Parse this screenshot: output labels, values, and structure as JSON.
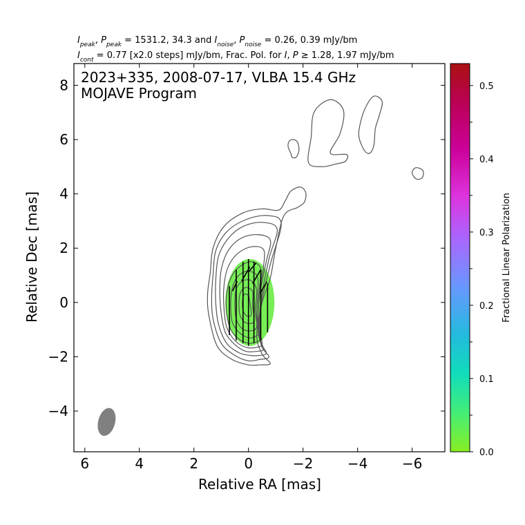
{
  "header": {
    "line1": [
      {
        "t": "I",
        "it": true
      },
      {
        "t": "peak",
        "sub": true,
        "it": true
      },
      {
        "t": ", "
      },
      {
        "t": "P",
        "it": true
      },
      {
        "t": "peak",
        "sub": true,
        "it": true
      },
      {
        "t": " = 1531.2, 34.3 and "
      },
      {
        "t": "I",
        "it": true
      },
      {
        "t": "noise",
        "sub": true,
        "it": true
      },
      {
        "t": ", "
      },
      {
        "t": "P",
        "it": true
      },
      {
        "t": "noise",
        "sub": true,
        "it": true
      },
      {
        "t": " = 0.26, 0.39 mJy/bm"
      }
    ],
    "line2": [
      {
        "t": "I",
        "it": true
      },
      {
        "t": "cont",
        "sub": true,
        "it": true
      },
      {
        "t": " = 0.77 [x2.0 steps] mJy/bm, Frac. Pol. for "
      },
      {
        "t": "I",
        "it": true
      },
      {
        "t": ", "
      },
      {
        "t": "P",
        "it": true
      },
      {
        "t": " ≥ 1.28, 1.97 mJy/bm"
      }
    ]
  },
  "chart_data": {
    "type": "contour",
    "title_line1": "2023+335, 2008-07-17, VLBA 15.4 GHz",
    "title_line2": "MOJAVE Program",
    "xlabel": "Relative RA [mas]",
    "ylabel": "Relative Dec [mas]",
    "xlim": [
      6.4,
      -7.2
    ],
    "ylim": [
      -5.5,
      8.8
    ],
    "xticks": [
      6,
      4,
      2,
      0,
      -2,
      -4,
      -6
    ],
    "yticks": [
      -4,
      -2,
      0,
      2,
      4,
      6,
      8
    ],
    "xticklabels": [
      "6",
      "4",
      "2",
      "0",
      "−2",
      "−4",
      "−6"
    ],
    "yticklabels": [
      "−4",
      "−2",
      "0",
      "2",
      "4",
      "6",
      "8"
    ],
    "colorbar": {
      "label": "Fractional Linear Polarization",
      "min": 0.0,
      "max": 0.53,
      "ticks": [
        0.0,
        0.1,
        0.2,
        0.3,
        0.4,
        0.5
      ],
      "ticklabels": [
        "0.0",
        "0.1",
        "0.2",
        "0.3",
        "0.4",
        "0.5"
      ],
      "minor_ticks": [
        0.05,
        0.15,
        0.25,
        0.35,
        0.45
      ]
    },
    "contour_color": "#555555",
    "polarization_color": "#77ee55",
    "beam": {
      "ra": 5.2,
      "dec": -4.4,
      "major": 1.05,
      "minor": 0.62,
      "pa_deg": 15,
      "color": "#808080"
    },
    "contours": [
      [
        [
          -0.8,
          -2.25
        ],
        [
          -0.5,
          -1.9
        ],
        [
          -0.3,
          -1.2
        ],
        [
          -0.5,
          0
        ],
        [
          -0.8,
          0.9
        ],
        [
          -1.0,
          2.0
        ],
        [
          -1.3,
          3.2
        ],
        [
          -1.8,
          3.5
        ],
        [
          -2.05,
          3.7
        ],
        [
          -2.1,
          4.05
        ],
        [
          -1.9,
          4.25
        ],
        [
          -1.55,
          4.1
        ],
        [
          -1.35,
          3.75
        ],
        [
          -1.1,
          3.4
        ],
        [
          -0.5,
          3.45
        ],
        [
          0.2,
          3.3
        ],
        [
          0.9,
          2.8
        ],
        [
          1.3,
          2.0
        ],
        [
          1.4,
          1.1
        ],
        [
          1.5,
          0.3
        ],
        [
          1.45,
          -0.5
        ],
        [
          1.15,
          -1.6
        ],
        [
          0.6,
          -2.1
        ],
        [
          0.0,
          -2.3
        ],
        [
          -0.4,
          -2.3
        ]
      ],
      [
        [
          -0.75,
          -2.0
        ],
        [
          -0.45,
          -1.5
        ],
        [
          -0.45,
          -0.2
        ],
        [
          -0.8,
          1.4
        ],
        [
          -1.2,
          2.9
        ],
        [
          -0.7,
          3.2
        ],
        [
          0.1,
          3.05
        ],
        [
          0.8,
          2.6
        ],
        [
          1.2,
          1.9
        ],
        [
          1.3,
          1.0
        ],
        [
          1.35,
          0.2
        ],
        [
          1.3,
          -0.6
        ],
        [
          1.0,
          -1.5
        ],
        [
          0.5,
          -1.95
        ],
        [
          0.0,
          -2.15
        ],
        [
          -0.4,
          -2.1
        ]
      ],
      [
        [
          -0.65,
          -1.85
        ],
        [
          -0.4,
          -1.3
        ],
        [
          -0.45,
          0
        ],
        [
          -0.75,
          1.6
        ],
        [
          -1.05,
          2.7
        ],
        [
          -0.5,
          2.95
        ],
        [
          0.2,
          2.8
        ],
        [
          0.75,
          2.35
        ],
        [
          1.1,
          1.7
        ],
        [
          1.2,
          0.8
        ],
        [
          1.2,
          0
        ],
        [
          1.1,
          -0.8
        ],
        [
          0.8,
          -1.5
        ],
        [
          0.35,
          -1.85
        ],
        [
          -0.05,
          -1.95
        ],
        [
          -0.4,
          -1.95
        ]
      ],
      [
        [
          -0.55,
          -1.7
        ],
        [
          -0.35,
          -1.1
        ],
        [
          -0.4,
          0.2
        ],
        [
          -0.65,
          1.5
        ],
        [
          -0.8,
          2.3
        ],
        [
          -0.3,
          2.5
        ],
        [
          0.3,
          2.35
        ],
        [
          0.75,
          1.9
        ],
        [
          1.0,
          1.2
        ],
        [
          1.05,
          0.4
        ],
        [
          1.0,
          -0.4
        ],
        [
          0.85,
          -1.1
        ],
        [
          0.5,
          -1.55
        ],
        [
          0.1,
          -1.8
        ],
        [
          -0.3,
          -1.8
        ]
      ],
      [
        [
          -0.5,
          -1.5
        ],
        [
          -0.35,
          -0.8
        ],
        [
          -0.4,
          0.4
        ],
        [
          -0.55,
          1.3
        ],
        [
          -0.55,
          1.95
        ],
        [
          -0.1,
          2.05
        ],
        [
          0.4,
          1.8
        ],
        [
          0.75,
          1.3
        ],
        [
          0.9,
          0.6
        ],
        [
          0.9,
          -0.2
        ],
        [
          0.8,
          -0.9
        ],
        [
          0.5,
          -1.4
        ],
        [
          0.1,
          -1.65
        ],
        [
          -0.3,
          -1.65
        ]
      ],
      [
        [
          -0.45,
          -1.3
        ],
        [
          -0.35,
          -0.6
        ],
        [
          -0.4,
          0.5
        ],
        [
          -0.45,
          1.25
        ],
        [
          -0.1,
          1.5
        ],
        [
          0.35,
          1.3
        ],
        [
          0.65,
          0.9
        ],
        [
          0.8,
          0.3
        ],
        [
          0.8,
          -0.4
        ],
        [
          0.65,
          -1.0
        ],
        [
          0.35,
          -1.35
        ],
        [
          0.0,
          -1.5
        ],
        [
          -0.3,
          -1.45
        ]
      ],
      [
        [
          -0.4,
          -1.1
        ],
        [
          -0.3,
          -0.5
        ],
        [
          -0.35,
          0.5
        ],
        [
          -0.3,
          1.0
        ],
        [
          0.05,
          1.15
        ],
        [
          0.4,
          0.95
        ],
        [
          0.6,
          0.5
        ],
        [
          0.65,
          -0.1
        ],
        [
          0.6,
          -0.7
        ],
        [
          0.35,
          -1.1
        ],
        [
          0.0,
          -1.3
        ],
        [
          -0.25,
          -1.25
        ]
      ],
      [
        [
          -0.3,
          -0.9
        ],
        [
          -0.25,
          -0.3
        ],
        [
          -0.3,
          0.45
        ],
        [
          -0.1,
          0.8
        ],
        [
          0.2,
          0.8
        ],
        [
          0.45,
          0.5
        ],
        [
          0.5,
          -0.05
        ],
        [
          0.45,
          -0.6
        ],
        [
          0.25,
          -0.95
        ],
        [
          -0.05,
          -1.05
        ]
      ],
      [
        [
          -0.2,
          -0.7
        ],
        [
          -0.15,
          -0.1
        ],
        [
          -0.15,
          0.4
        ],
        [
          0.1,
          0.55
        ],
        [
          0.3,
          0.35
        ],
        [
          0.35,
          -0.1
        ],
        [
          0.3,
          -0.5
        ],
        [
          0.1,
          -0.75
        ]
      ],
      [
        [
          -0.1,
          -0.45
        ],
        [
          -0.05,
          0.0
        ],
        [
          0.0,
          0.25
        ],
        [
          0.15,
          0.3
        ],
        [
          0.22,
          0.05
        ],
        [
          0.2,
          -0.3
        ],
        [
          0.05,
          -0.5
        ]
      ],
      [
        [
          -3.6,
          5.45
        ],
        [
          -3.0,
          5.5
        ],
        [
          -3.35,
          6.2
        ],
        [
          -3.5,
          6.95
        ],
        [
          -3.3,
          7.35
        ],
        [
          -2.9,
          7.45
        ],
        [
          -2.4,
          7.0
        ],
        [
          -2.3,
          6.1
        ],
        [
          -2.2,
          5.15
        ],
        [
          -2.7,
          5.0
        ],
        [
          -3.2,
          5.1
        ],
        [
          -3.55,
          5.2
        ]
      ],
      [
        [
          -4.25,
          5.6
        ],
        [
          -4.05,
          6.1
        ],
        [
          -4.1,
          6.6
        ],
        [
          -4.3,
          7.2
        ],
        [
          -4.6,
          7.6
        ],
        [
          -4.9,
          7.4
        ],
        [
          -4.8,
          6.9
        ],
        [
          -4.65,
          6.4
        ],
        [
          -4.6,
          5.8
        ],
        [
          -4.45,
          5.5
        ]
      ],
      [
        [
          -1.55,
          5.5
        ],
        [
          -1.45,
          5.75
        ],
        [
          -1.5,
          5.95
        ],
        [
          -1.65,
          6.0
        ],
        [
          -1.8,
          5.9
        ],
        [
          -1.85,
          5.6
        ],
        [
          -1.75,
          5.35
        ],
        [
          -1.6,
          5.35
        ]
      ],
      [
        [
          -6.05,
          4.65
        ],
        [
          -6.0,
          4.8
        ],
        [
          -6.1,
          4.95
        ],
        [
          -6.25,
          4.95
        ],
        [
          -6.4,
          4.85
        ],
        [
          -6.4,
          4.65
        ],
        [
          -6.3,
          4.55
        ],
        [
          -6.15,
          4.55
        ]
      ]
    ],
    "polarization_region": {
      "ra": -0.05,
      "dec": 0.0,
      "ra_halfwidth": 0.9,
      "dec_halfheight": 1.6
    },
    "evpa_ticks": [
      {
        "ra": 0.7,
        "dec": -0.3,
        "len": 1.8
      },
      {
        "ra": 0.45,
        "dec": -0.1,
        "len": 2.6
      },
      {
        "ra": 0.2,
        "dec": 0.0,
        "len": 3.0
      },
      {
        "ra": 0.0,
        "dec": 0.0,
        "len": 3.2
      },
      {
        "ra": -0.2,
        "dec": 0.0,
        "len": 3.0
      },
      {
        "ra": -0.45,
        "dec": -0.1,
        "len": 2.6
      },
      {
        "ra": -0.7,
        "dec": -0.2,
        "len": 1.8
      },
      {
        "ra": 0.1,
        "dec": 1.05,
        "len": 0.6,
        "angle": -30
      },
      {
        "ra": -0.3,
        "dec": 0.95,
        "len": 0.6,
        "angle": -30
      },
      {
        "ra": 0.5,
        "dec": 0.6,
        "len": 0.4,
        "angle": -25
      },
      {
        "ra": -0.55,
        "dec": 0.55,
        "len": 0.5,
        "angle": -30
      },
      {
        "ra": -0.15,
        "dec": 1.3,
        "len": 0.4,
        "angle": -40
      }
    ]
  }
}
